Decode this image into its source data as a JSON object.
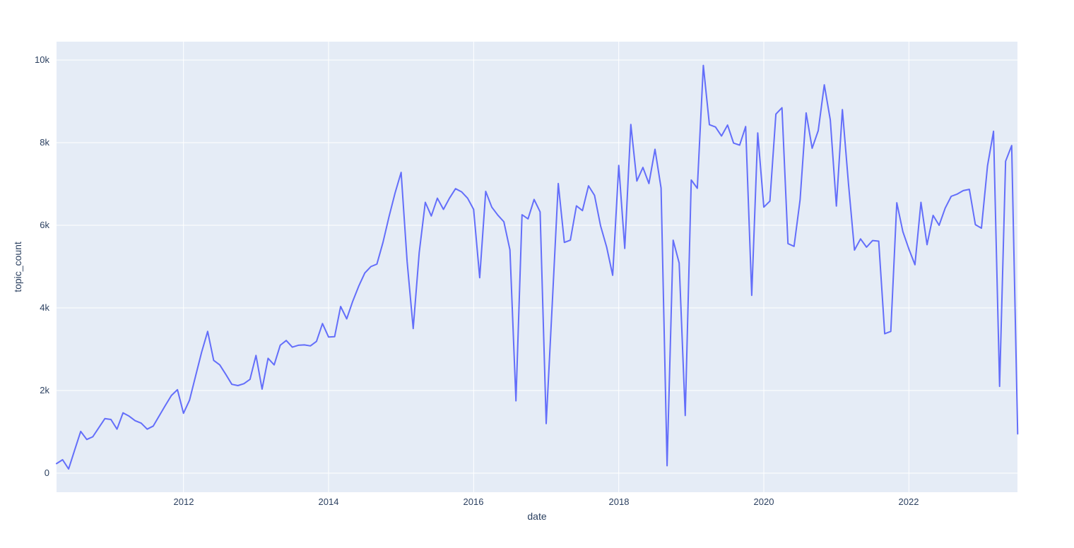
{
  "figure": {
    "background_color": "#ffffff"
  },
  "chart_data": {
    "type": "line",
    "title": "",
    "xlabel": "date",
    "ylabel": "topic_count",
    "legend": "none",
    "grid": "on",
    "colors": {
      "line": "#636efa",
      "plot_bg": "#e5ecf6",
      "grid": "#ffffff",
      "text": "#2a3f5f"
    },
    "x_tick_labels": [
      "2012",
      "2014",
      "2016",
      "2018",
      "2020",
      "2022"
    ],
    "y_tick_labels": [
      "0",
      "2k",
      "4k",
      "6k",
      "8k",
      "10k"
    ],
    "x_grid_years": [
      2012,
      2014,
      2016,
      2018,
      2020,
      2022
    ],
    "y_grid_values": [
      0,
      2000,
      4000,
      6000,
      8000,
      10000
    ],
    "xlim": [
      "2010-04",
      "2023-07"
    ],
    "ylim": [
      -450,
      10440
    ],
    "x": [
      "2010-04",
      "2010-05",
      "2010-06",
      "2010-07",
      "2010-08",
      "2010-09",
      "2010-10",
      "2010-11",
      "2010-12",
      "2011-01",
      "2011-02",
      "2011-03",
      "2011-04",
      "2011-05",
      "2011-06",
      "2011-07",
      "2011-08",
      "2011-09",
      "2011-10",
      "2011-11",
      "2011-12",
      "2012-01",
      "2012-02",
      "2012-03",
      "2012-04",
      "2012-05",
      "2012-06",
      "2012-07",
      "2012-08",
      "2012-09",
      "2012-10",
      "2012-11",
      "2012-12",
      "2013-01",
      "2013-02",
      "2013-03",
      "2013-04",
      "2013-05",
      "2013-06",
      "2013-07",
      "2013-08",
      "2013-09",
      "2013-10",
      "2013-11",
      "2013-12",
      "2014-01",
      "2014-02",
      "2014-03",
      "2014-04",
      "2014-05",
      "2014-06",
      "2014-07",
      "2014-08",
      "2014-09",
      "2014-10",
      "2014-11",
      "2014-12",
      "2015-01",
      "2015-02",
      "2015-03",
      "2015-04",
      "2015-05",
      "2015-06",
      "2015-07",
      "2015-08",
      "2015-09",
      "2015-10",
      "2015-11",
      "2015-12",
      "2016-01",
      "2016-02",
      "2016-03",
      "2016-04",
      "2016-05",
      "2016-06",
      "2016-07",
      "2016-08",
      "2016-09",
      "2016-10",
      "2016-11",
      "2016-12",
      "2017-01",
      "2017-02",
      "2017-03",
      "2017-04",
      "2017-05",
      "2017-06",
      "2017-07",
      "2017-08",
      "2017-09",
      "2017-10",
      "2017-11",
      "2017-12",
      "2018-01",
      "2018-02",
      "2018-03",
      "2018-04",
      "2018-05",
      "2018-06",
      "2018-07",
      "2018-08",
      "2018-09",
      "2018-10",
      "2018-11",
      "2018-12",
      "2019-01",
      "2019-02",
      "2019-03",
      "2019-04",
      "2019-05",
      "2019-06",
      "2019-07",
      "2019-08",
      "2019-09",
      "2019-10",
      "2019-11",
      "2019-12",
      "2020-01",
      "2020-02",
      "2020-03",
      "2020-04",
      "2020-05",
      "2020-06",
      "2020-07",
      "2020-08",
      "2020-09",
      "2020-10",
      "2020-11",
      "2020-12",
      "2021-01",
      "2021-02",
      "2021-03",
      "2021-04",
      "2021-05",
      "2021-06",
      "2021-07",
      "2021-08",
      "2021-09",
      "2021-10",
      "2021-11",
      "2021-12",
      "2022-01",
      "2022-02",
      "2022-03",
      "2022-04",
      "2022-05",
      "2022-06",
      "2022-07",
      "2022-08",
      "2022-09",
      "2022-10",
      "2022-11",
      "2022-12",
      "2023-01",
      "2023-02",
      "2023-03",
      "2023-04",
      "2023-05",
      "2023-06",
      "2023-07"
    ],
    "y": [
      230,
      325,
      100,
      560,
      1010,
      815,
      880,
      1100,
      1320,
      1300,
      1065,
      1460,
      1380,
      1270,
      1210,
      1065,
      1140,
      1390,
      1640,
      1880,
      2020,
      1450,
      1765,
      2350,
      2925,
      3430,
      2730,
      2620,
      2390,
      2150,
      2120,
      2165,
      2270,
      2850,
      2035,
      2780,
      2620,
      3095,
      3210,
      3050,
      3095,
      3105,
      3080,
      3190,
      3620,
      3295,
      3305,
      4035,
      3735,
      4160,
      4530,
      4845,
      5000,
      5060,
      5585,
      6210,
      6780,
      7280,
      5120,
      3500,
      5340,
      6555,
      6225,
      6655,
      6385,
      6655,
      6885,
      6810,
      6655,
      6385,
      4730,
      6820,
      6440,
      6245,
      6085,
      5405,
      1750,
      6255,
      6155,
      6625,
      6325,
      1200,
      4100,
      7010,
      5585,
      5640,
      6470,
      6355,
      6955,
      6725,
      5985,
      5470,
      4790,
      7450,
      5440,
      8440,
      7070,
      7400,
      7010,
      7840,
      6900,
      180,
      5640,
      5085,
      1395,
      7095,
      6895,
      9870,
      8435,
      8380,
      8160,
      8425,
      7990,
      7940,
      8390,
      4305,
      8235,
      6440,
      6585,
      8690,
      8845,
      5555,
      5490,
      6610,
      8720,
      7865,
      8290,
      9400,
      8550,
      6465,
      8800,
      7010,
      5400,
      5670,
      5470,
      5630,
      5615,
      3375,
      3430,
      6545,
      5845,
      5425,
      5045,
      6555,
      5530,
      6240,
      6000,
      6415,
      6700,
      6755,
      6840,
      6870,
      6015,
      5930,
      7440,
      8275,
      2100,
      7550,
      7930,
      950
    ]
  }
}
